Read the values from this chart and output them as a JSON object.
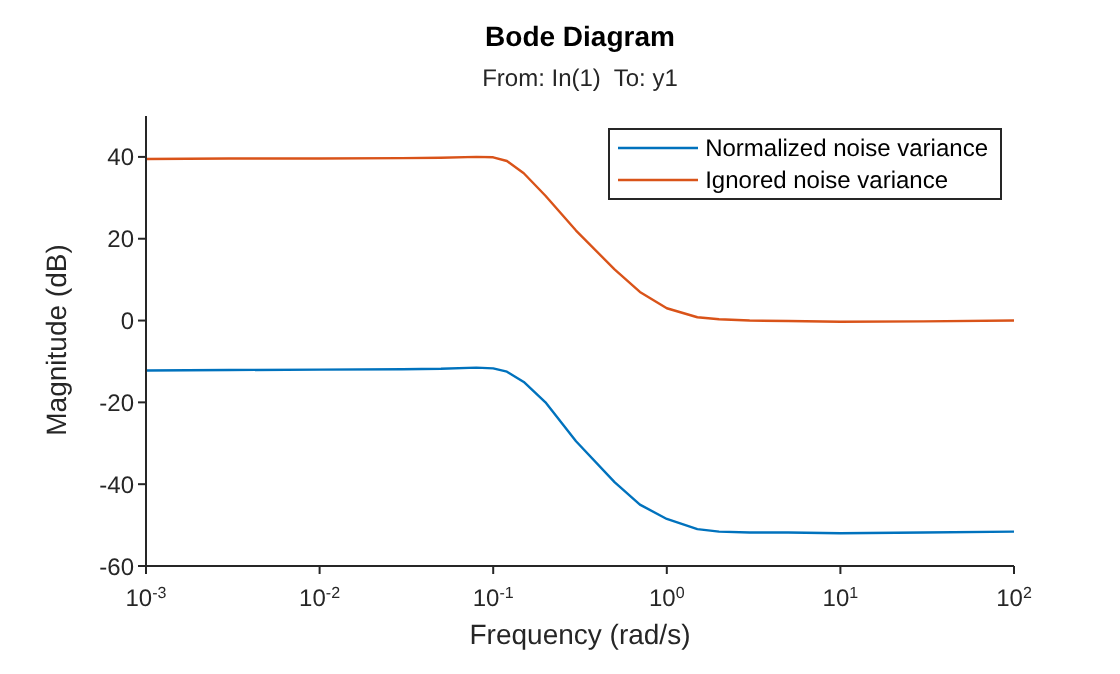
{
  "chart_data": {
    "type": "line",
    "title": "Bode Diagram",
    "subtitle": "From: In(1)  To: y1",
    "xlabel": "Frequency (rad/s)",
    "ylabel": "Magnitude (dB)",
    "x": [
      0.001,
      0.003,
      0.01,
      0.03,
      0.05,
      0.08,
      0.1,
      0.12,
      0.15,
      0.2,
      0.3,
      0.5,
      0.7,
      1,
      1.5,
      2,
      3,
      5,
      10,
      30,
      100
    ],
    "series": [
      {
        "name": "Normalized noise variance",
        "color": "#0072bd",
        "values": [
          -12.2,
          -12.1,
          -12,
          -11.9,
          -11.8,
          -11.5,
          -11.7,
          -12.5,
          -15,
          -20,
          -29.5,
          -39.5,
          -45,
          -48.5,
          -51,
          -51.6,
          -51.8,
          -51.8,
          -52,
          -51.8,
          -51.6
        ]
      },
      {
        "name": "Ignored noise variance",
        "color": "#d95319",
        "values": [
          39.5,
          39.6,
          39.6,
          39.7,
          39.8,
          40,
          39.9,
          39,
          36,
          30.5,
          22,
          12.5,
          7,
          3,
          0.8,
          0.3,
          0,
          -0.1,
          -0.3,
          -0.2,
          0
        ]
      }
    ],
    "log": "x",
    "xlim": [
      0.001,
      100
    ],
    "ylim": [
      -60,
      50
    ],
    "xticks": [
      {
        "value": 0.001,
        "label": "10$^{-3}$"
      },
      {
        "value": 0.01,
        "label": "10$^{-2}$"
      },
      {
        "value": 0.1,
        "label": "10$^{-1}$"
      },
      {
        "value": 1,
        "label": "10$^{0}$"
      },
      {
        "value": 10,
        "label": "10$^{1}$"
      },
      {
        "value": 100,
        "label": "10$^{2}$"
      }
    ],
    "yticks": [
      -60,
      -40,
      -20,
      0,
      20,
      40
    ],
    "grid": false,
    "legend": "top right",
    "line_style": "solid",
    "marker": "none"
  }
}
